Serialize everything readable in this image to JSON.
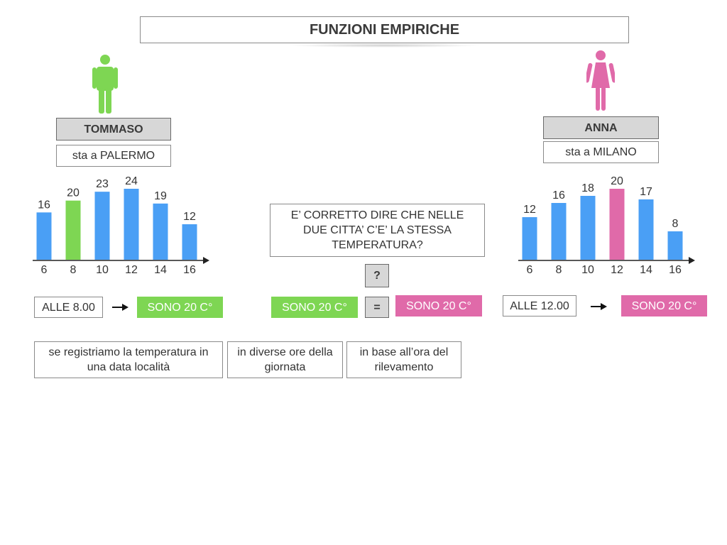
{
  "title": "FUNZIONI EMPIRICHE",
  "left_person": {
    "name": "TOMMASO",
    "city": "sta a PALERMO",
    "color": "#7ed653",
    "time_label": "ALLE 8.00",
    "temp_label": "SONO 20 C°"
  },
  "right_person": {
    "name": "ANNA",
    "city": "sta a MILANO",
    "color": "#e06aa9",
    "time_label": "ALLE 12.00",
    "temp_label": "SONO 20 C°"
  },
  "question": {
    "text": "E’ CORRETTO DIRE CHE NELLE DUE CITTA’ C’E’ LA STESSA TEMPERATURA?",
    "mark": "?",
    "left_temp": "SONO 20 C°",
    "equals": "=",
    "right_temp": "SONO 20 C°"
  },
  "notes": [
    "se registriamo la temperatura in una data località",
    "in diverse ore della giornata",
    "in base all’ora del rilevamento"
  ],
  "icons": {
    "left": "male-person-icon",
    "right": "female-person-icon",
    "arrow": "right-arrow-icon"
  },
  "colors": {
    "bar": "#4a9ff5",
    "highlight_left": "#7ed653",
    "highlight_right": "#e06aa9",
    "axis": "#222222"
  },
  "chart_data": [
    {
      "type": "bar",
      "categories": [
        "6",
        "8",
        "10",
        "12",
        "14",
        "16"
      ],
      "values": [
        16,
        20,
        23,
        24,
        19,
        12
      ],
      "highlight_index": 1,
      "highlight_color": "#7ed653",
      "bar_color": "#4a9ff5",
      "xlabel": "",
      "ylabel": "",
      "ylim": [
        0,
        24
      ]
    },
    {
      "type": "bar",
      "categories": [
        "6",
        "8",
        "10",
        "12",
        "14",
        "16"
      ],
      "values": [
        12,
        16,
        18,
        20,
        17,
        8
      ],
      "highlight_index": 3,
      "highlight_color": "#e06aa9",
      "bar_color": "#4a9ff5",
      "xlabel": "",
      "ylabel": "",
      "ylim": [
        0,
        20
      ]
    }
  ]
}
